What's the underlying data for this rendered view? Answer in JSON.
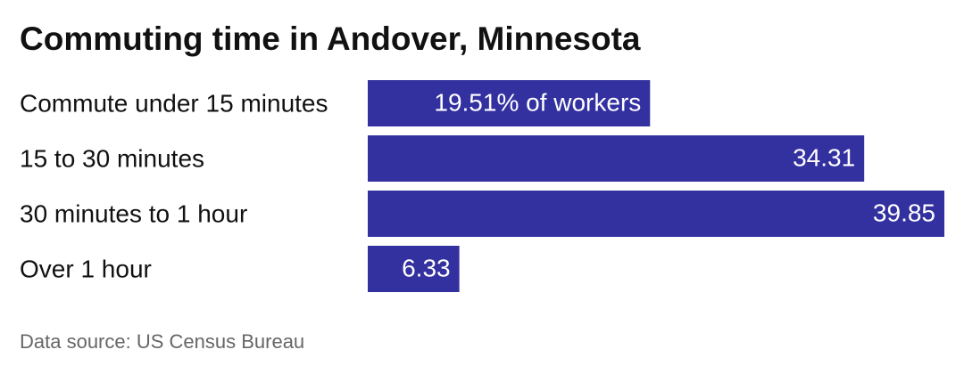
{
  "chart_data": {
    "type": "bar",
    "orientation": "horizontal",
    "title": "Commuting time in Andover, Minnesota",
    "categories": [
      "Commute under 15 minutes",
      "15 to 30 minutes",
      "30 minutes to 1 hour",
      "Over 1 hour"
    ],
    "values": [
      19.51,
      34.31,
      39.85,
      6.33
    ],
    "value_labels": [
      "19.51% of workers",
      "34.31",
      "39.85",
      "6.33"
    ],
    "color": "#3330a0",
    "source": "Data source: US Census Bureau"
  }
}
